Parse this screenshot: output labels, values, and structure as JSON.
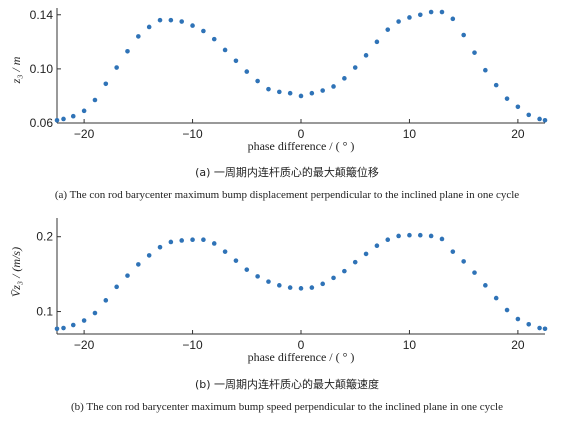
{
  "charts": [
    {
      "caption_cn": "(a) 一周期内连杆质心的最大颠簸位移",
      "caption_en": "(a) The con rod barycenter maximum bump displacement perpendicular to the inclined plane in one cycle"
    },
    {
      "caption_cn": "(b) 一周期内连杆质心的最大颠簸速度",
      "caption_en": "(b) The con rod barycenter maximum bump speed perpendicular to the inclined plane in one cycle"
    }
  ],
  "colors": {
    "marker": "#2f73b7",
    "axis": "#333333"
  },
  "chart_data": [
    {
      "type": "scatter",
      "xlabel": "phase difference / ( ° )",
      "ylabel": "z₃ / m",
      "xlim": [
        -22.5,
        22.5
      ],
      "ylim": [
        0.06,
        0.145
      ],
      "xticks": [
        -20,
        -10,
        0,
        10,
        20
      ],
      "yticks": [
        0.06,
        0.1,
        0.14
      ],
      "ytick_labels": [
        "0.06",
        "0.10",
        "0.14"
      ],
      "x": [
        -22.5,
        -21.9,
        -21,
        -20,
        -19,
        -18,
        -17,
        -16,
        -15,
        -14,
        -13,
        -12,
        -11,
        -10,
        -9,
        -8,
        -7,
        -6,
        -5,
        -4,
        -3,
        -2,
        -1,
        0,
        1,
        2,
        3,
        4,
        5,
        6,
        7,
        8,
        9,
        10,
        11,
        12,
        13,
        14,
        15,
        16,
        17,
        18,
        19,
        20,
        21,
        22,
        22.5
      ],
      "y": [
        0.062,
        0.063,
        0.065,
        0.069,
        0.077,
        0.089,
        0.101,
        0.113,
        0.124,
        0.131,
        0.136,
        0.136,
        0.135,
        0.132,
        0.128,
        0.122,
        0.114,
        0.106,
        0.098,
        0.091,
        0.085,
        0.083,
        0.082,
        0.08,
        0.082,
        0.084,
        0.087,
        0.093,
        0.101,
        0.11,
        0.12,
        0.129,
        0.135,
        0.138,
        0.14,
        0.142,
        0.142,
        0.137,
        0.125,
        0.112,
        0.099,
        0.088,
        0.078,
        0.072,
        0.066,
        0.063,
        0.062
      ]
    },
    {
      "type": "scatter",
      "xlabel": "phase difference / ( ° )",
      "ylabel": "V̄z₃ / (m/s)",
      "xlim": [
        -22.5,
        22.5
      ],
      "ylim": [
        0.07,
        0.225
      ],
      "xticks": [
        -20,
        -10,
        0,
        10,
        20
      ],
      "yticks": [
        0.1,
        0.2
      ],
      "ytick_labels": [
        "0.1",
        "0.2"
      ],
      "x": [
        -22.5,
        -21.9,
        -21,
        -20,
        -19,
        -18,
        -17,
        -16,
        -15,
        -14,
        -13,
        -12,
        -11,
        -10,
        -9,
        -8,
        -7,
        -6,
        -5,
        -4,
        -3,
        -2,
        -1,
        0,
        1,
        2,
        3,
        4,
        5,
        6,
        7,
        8,
        9,
        10,
        11,
        12,
        13,
        14,
        15,
        16,
        17,
        18,
        19,
        20,
        21,
        22,
        22.5
      ],
      "y": [
        0.077,
        0.078,
        0.082,
        0.088,
        0.098,
        0.115,
        0.133,
        0.148,
        0.163,
        0.175,
        0.186,
        0.193,
        0.195,
        0.196,
        0.196,
        0.191,
        0.18,
        0.168,
        0.156,
        0.147,
        0.14,
        0.135,
        0.132,
        0.131,
        0.132,
        0.137,
        0.145,
        0.154,
        0.166,
        0.177,
        0.188,
        0.196,
        0.201,
        0.202,
        0.202,
        0.201,
        0.197,
        0.18,
        0.167,
        0.152,
        0.135,
        0.118,
        0.102,
        0.09,
        0.083,
        0.078,
        0.077
      ]
    }
  ]
}
